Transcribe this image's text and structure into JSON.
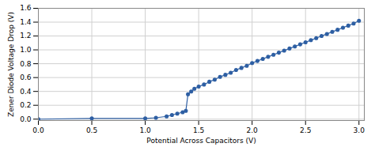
{
  "chart_data": {
    "type": "line",
    "xlabel": "Potential Across Capacitors (V)",
    "ylabel": "Zener Diode Voltage Drop (V)",
    "x": [
      0.0,
      0.5,
      1.0,
      1.1,
      1.2,
      1.25,
      1.3,
      1.35,
      1.38,
      1.4,
      1.43,
      1.46,
      1.5,
      1.55,
      1.6,
      1.65,
      1.7,
      1.75,
      1.8,
      1.85,
      1.9,
      1.95,
      2.0,
      2.05,
      2.1,
      2.15,
      2.2,
      2.25,
      2.3,
      2.35,
      2.4,
      2.45,
      2.5,
      2.55,
      2.6,
      2.65,
      2.7,
      2.75,
      2.8,
      2.85,
      2.9,
      2.95,
      3.0
    ],
    "values": [
      0.0,
      0.01,
      0.01,
      0.02,
      0.04,
      0.06,
      0.08,
      0.1,
      0.12,
      0.36,
      0.4,
      0.44,
      0.47,
      0.5,
      0.54,
      0.57,
      0.61,
      0.64,
      0.67,
      0.71,
      0.74,
      0.77,
      0.81,
      0.84,
      0.87,
      0.9,
      0.93,
      0.96,
      0.99,
      1.02,
      1.05,
      1.08,
      1.11,
      1.14,
      1.17,
      1.2,
      1.23,
      1.26,
      1.29,
      1.32,
      1.35,
      1.38,
      1.42
    ],
    "color": "#2E5FA3",
    "marker": "circle",
    "xlim": [
      0,
      3.05
    ],
    "ylim": [
      -0.02,
      1.6
    ],
    "xticks": [
      {
        "value": 0,
        "label": "0.0"
      },
      0.5,
      {
        "value": 1.0,
        "label": "1.0"
      },
      1.5,
      {
        "value": 2.0,
        "label": "2.0"
      },
      2.5,
      {
        "value": 3.0,
        "label": "3.0"
      }
    ],
    "yticks": [
      {
        "value": 0,
        "label": "0.0"
      },
      0.2,
      0.4,
      0.6,
      0.8,
      {
        "value": 1.0,
        "label": "1.0"
      },
      1.2,
      1.4,
      1.6
    ],
    "grid": true
  }
}
